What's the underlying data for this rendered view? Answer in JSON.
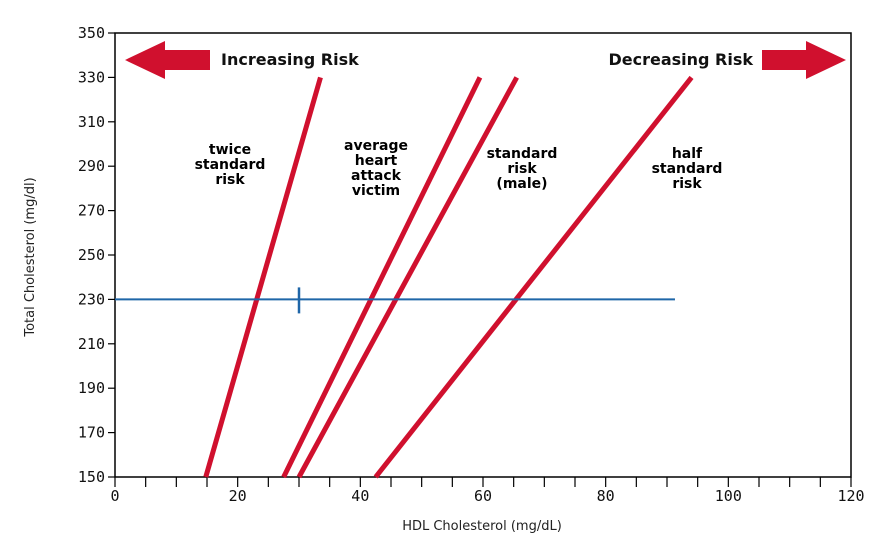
{
  "chart_data": {
    "type": "line",
    "xlabel": "HDL Cholesterol (mg/dL)",
    "ylabel": "Total Cholesterol (mg/dl)",
    "xlim": [
      0,
      120
    ],
    "ylim": [
      150,
      350
    ],
    "xticks": [
      0,
      20,
      40,
      60,
      80,
      100,
      120
    ],
    "yticks": [
      150,
      170,
      190,
      210,
      230,
      250,
      270,
      290,
      310,
      330,
      350
    ],
    "grid": false,
    "annotations": {
      "left_arrow": "Increasing Risk",
      "right_arrow": "Decreasing Risk"
    },
    "series": [
      {
        "label_lines": [
          "twice",
          "standard",
          "risk"
        ],
        "points": [
          [
            14.8,
            150
          ],
          [
            33.5,
            330
          ]
        ]
      },
      {
        "label_lines": [
          "average",
          "heart",
          "attack",
          "victim"
        ],
        "points": [
          [
            27.5,
            150
          ],
          [
            59.5,
            330
          ]
        ]
      },
      {
        "label_lines": [
          "standard",
          "risk",
          "(male)"
        ],
        "points": [
          [
            30.0,
            150
          ],
          [
            65.5,
            330
          ]
        ]
      },
      {
        "label_lines": [
          "half",
          "standard",
          "risk"
        ],
        "points": [
          [
            42.5,
            150
          ],
          [
            94.0,
            330
          ]
        ]
      }
    ],
    "reference_line": {
      "y": 230,
      "x_range": [
        0,
        91.3
      ],
      "marker_x": 30
    },
    "colors": {
      "line": "#d0102e",
      "reference": "#1f66a8",
      "arrow": "#d0102e"
    }
  }
}
